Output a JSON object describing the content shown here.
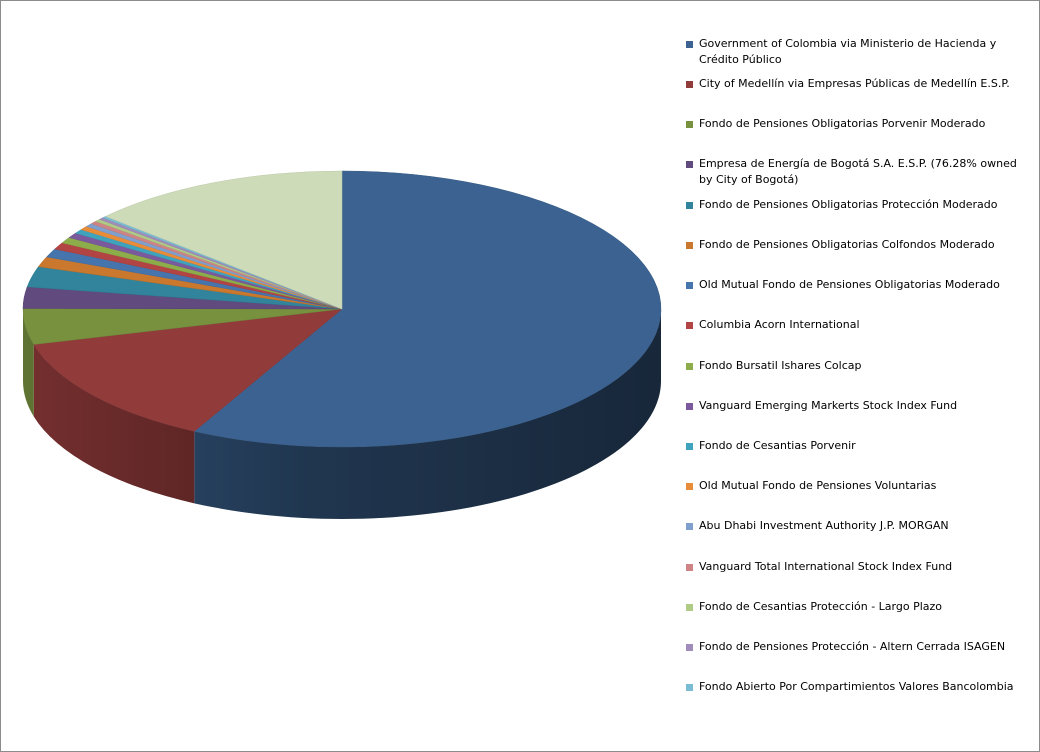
{
  "chart_data": {
    "type": "pie",
    "title": "",
    "legend_position": "right",
    "slices": [
      {
        "label": "Government of Colombia via Ministerio de Hacienda y Crédito Público",
        "value": 57.66,
        "color": "#3B6290"
      },
      {
        "label": "City of Medellín via Empresas Públicas de Medellín E.S.P.",
        "value": 13.2,
        "color": "#923B3B"
      },
      {
        "label": "Fondo de Pensiones Obligatorias Porvenir Moderado",
        "value": 4.2,
        "color": "#77913F"
      },
      {
        "label": "Empresa de Energía de Bogotá S.A. E.S.P.  (76.28% owned by City of Bogotá)",
        "value": 2.5,
        "color": "#614A7E"
      },
      {
        "label": "Fondo de Pensiones Obligatorias Protección Moderado",
        "value": 2.4,
        "color": "#31849B"
      },
      {
        "label": "Fondo de Pensiones Obligatorias Colfondos Moderado",
        "value": 1.2,
        "color": "#C9782D"
      },
      {
        "label": "Old Mutual Fondo de Pensiones Obligatorias Moderado",
        "value": 1.0,
        "color": "#4674AD"
      },
      {
        "label": "Columbia Acorn International",
        "value": 0.8,
        "color": "#B34444"
      },
      {
        "label": "Fondo Bursatil Ishares Colcap",
        "value": 0.7,
        "color": "#8DAD4A"
      },
      {
        "label": "Vanguard Emerging Markerts Stock Index Fund",
        "value": 0.6,
        "color": "#7A5A9C"
      },
      {
        "label": "Fondo de Cesantias Porvenir",
        "value": 0.5,
        "color": "#3FA3BE"
      },
      {
        "label": "Old Mutual Fondo de Pensiones Voluntarias",
        "value": 0.45,
        "color": "#E98C3A"
      },
      {
        "label": "Abu Dhabi Investment  Authority J.P. MORGAN",
        "value": 0.4,
        "color": "#7FA0CE"
      },
      {
        "label": "Vanguard Total  International Stock Index Fund",
        "value": 0.35,
        "color": "#CE8484"
      },
      {
        "label": "Fondo de Cesantias Protección - Largo Plazo",
        "value": 0.3,
        "color": "#AFCB85"
      },
      {
        "label": "Fondo de Pensiones Protección - Altern Cerrada ISAGEN",
        "value": 0.25,
        "color": "#A08CBA"
      },
      {
        "label": "Fondo Abierto Por Compartimientos  Valores Bancolombia",
        "value": 0.2,
        "color": "#79BCD3"
      },
      {
        "label": "",
        "value": 13.29,
        "color": "#CDDBB8"
      }
    ]
  }
}
